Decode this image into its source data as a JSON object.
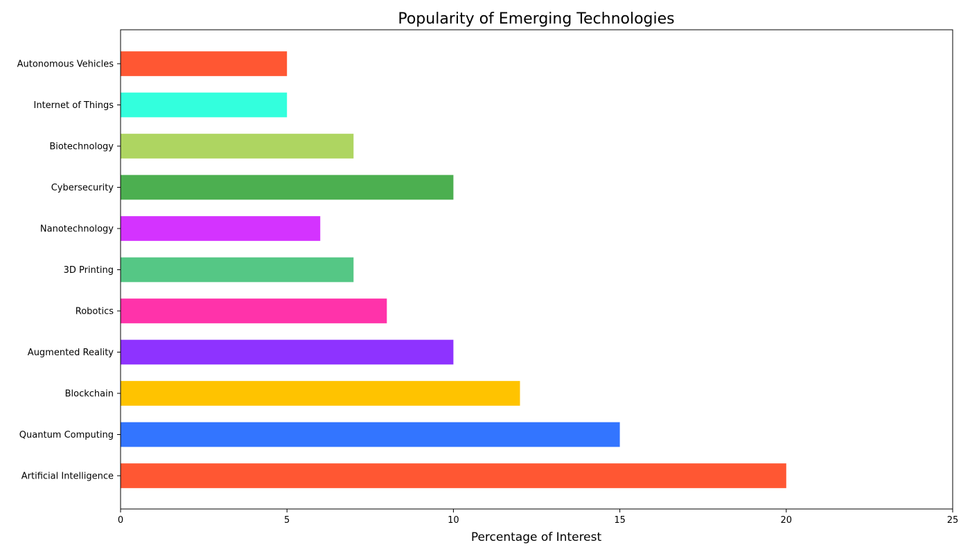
{
  "chart_data": {
    "type": "bar",
    "orientation": "horizontal",
    "title": "Popularity of Emerging Technologies",
    "xlabel": "Percentage of Interest",
    "ylabel": "",
    "xlim": [
      0,
      25
    ],
    "xticks": [
      0,
      5,
      10,
      15,
      20,
      25
    ],
    "grid": false,
    "categories": [
      "Artificial Intelligence",
      "Quantum Computing",
      "Blockchain",
      "Augmented Reality",
      "Robotics",
      "3D Printing",
      "Nanotechnology",
      "Cybersecurity",
      "Biotechnology",
      "Internet of Things",
      "Autonomous Vehicles"
    ],
    "values": [
      20,
      15,
      12,
      10,
      8,
      7,
      6,
      10,
      7,
      5,
      5
    ],
    "colors": [
      "#FF5733",
      "#3375FF",
      "#FFC300",
      "#8E33FF",
      "#FF33AA",
      "#55C785",
      "#D433FF",
      "#4CAF50",
      "#AED561",
      "#33FFDD",
      "#FF5733"
    ]
  }
}
